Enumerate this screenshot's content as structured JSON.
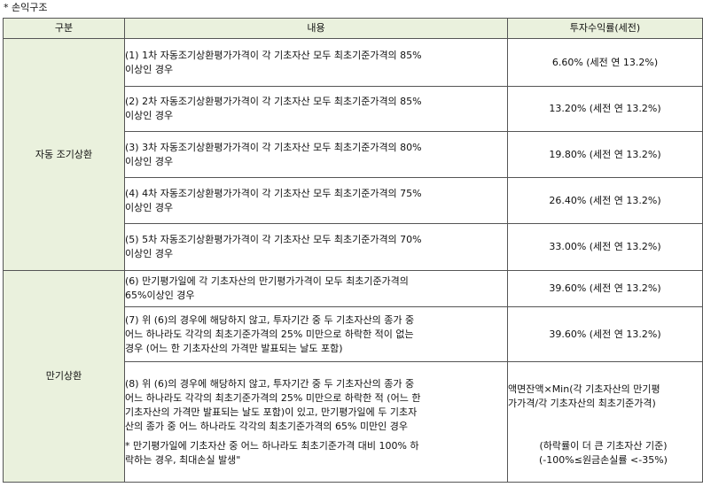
{
  "section_title": "* 손익구조",
  "table": {
    "headers": [
      "구분",
      "내용",
      "투자수익률(세전)"
    ],
    "groups": {
      "early": "자동 조기상환",
      "maturity": "만기상환"
    },
    "rows": [
      {
        "content_lines": [
          "(1) 1차 자동조기상환평가가격이 각 기초자산 모두 최초기준가격의 85%",
          "이상인 경우"
        ],
        "return": "6.60% (세전 연 13.2%)"
      },
      {
        "content_lines": [
          "(2) 2차 자동조기상환평가가격이 각 기초자산 모두 최초기준가격의 85%",
          "이상인 경우"
        ],
        "return": "13.20% (세전 연 13.2%)"
      },
      {
        "content_lines": [
          "(3) 3차 자동조기상환평가가격이 각 기초자산 모두 최초기준가격의 80%",
          "이상인 경우"
        ],
        "return": "19.80% (세전 연 13.2%)"
      },
      {
        "content_lines": [
          "(4) 4차 자동조기상환평가가격이 각 기초자산 모두 최초기준가격의 75%",
          "이상인 경우"
        ],
        "return": "26.40% (세전 연 13.2%)"
      },
      {
        "content_lines": [
          "(5) 5차 자동조기상환평가가격이 각 기초자산 모두 최초기준가격의 70%",
          "이상인 경우"
        ],
        "return": "33.00% (세전 연 13.2%)"
      },
      {
        "content_lines": [
          "(6) 만기평가일에 각 기초자산의 만기평가가격이 모두 최초기준가격의",
          "65%이상인 경우"
        ],
        "return": "39.60% (세전 연 13.2%)"
      },
      {
        "content_lines": [
          "(7) 위 (6)의 경우에 해당하지 않고, 투자기간 중 두 기초자산의 종가 중",
          "어느 하나라도 각각의 최초기준가격의 25%  미만으로 하락한 적이 없는",
          "경우 (어느 한 기초자산의 가격만 발표되는 날도 포함)"
        ],
        "return": "39.60% (세전 연 13.2%)"
      },
      {
        "content_lines": [
          "(8) 위 (6)의 경우에 해당하지 않고, 투자기간 중 두 기초자산의 종가 중",
          "어느 하나라도 각각의 최초기준가격의 25% 미만으로 하락한 적 (어느 한",
          "기초자산의 가격만 발표되는 날도 포함)이 있고, 만기평가일에 두 기초자",
          "산의 종가 중 어느 하나라도 각각의 최초기준가격의 65%  미만인 경우"
        ],
        "note_lines": [
          "* 만기평가일에 기초자산 중 어느 하나라도 최초기준가격 대비 100% 하",
          "락하는 경우, 최대손실 발생\""
        ],
        "return_lines": [
          "액면잔액×Min(각 기초자산의 만기평",
          "가가격/각 기초자산의 최초기준가격)"
        ],
        "return_lower_lines": [
          "(하락률이 더 큰 기초자산 기준)",
          "(-100%≤원금손실률 <-35%)"
        ]
      }
    ]
  }
}
